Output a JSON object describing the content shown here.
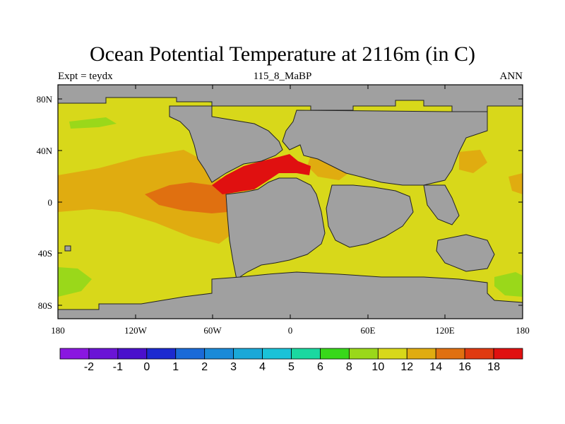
{
  "title": "Ocean Potential Temperature at 2116m (in C)",
  "subtitle_left": "Expt = teydx",
  "subtitle_center": "115_8_MaBP",
  "subtitle_right": "ANN",
  "lat_labels": [
    "80N",
    "40N",
    "0",
    "40S",
    "80S"
  ],
  "lon_labels": [
    "180",
    "120W",
    "60W",
    "0",
    "60E",
    "120E",
    "180"
  ],
  "colorbar": {
    "labels": [
      "-2",
      "-1",
      "0",
      "1",
      "2",
      "3",
      "4",
      "5",
      "6",
      "8",
      "10",
      "12",
      "14",
      "16",
      "18"
    ],
    "colors": [
      "#8a17e0",
      "#6a14d6",
      "#4a10cc",
      "#1c2ad0",
      "#1a6ad8",
      "#1a8ad8",
      "#1aa8d8",
      "#1ac2d8",
      "#1ad8a0",
      "#38d81a",
      "#9ad81a",
      "#d8d81a",
      "#e0ac10",
      "#e07010",
      "#e03a10",
      "#e01010"
    ]
  },
  "colors": {
    "land": "#a0a0a0",
    "c12": "#d8d81a",
    "c14": "#e0ac10",
    "c16": "#e07010",
    "c18": "#e01010",
    "c10": "#9ad81a"
  }
}
